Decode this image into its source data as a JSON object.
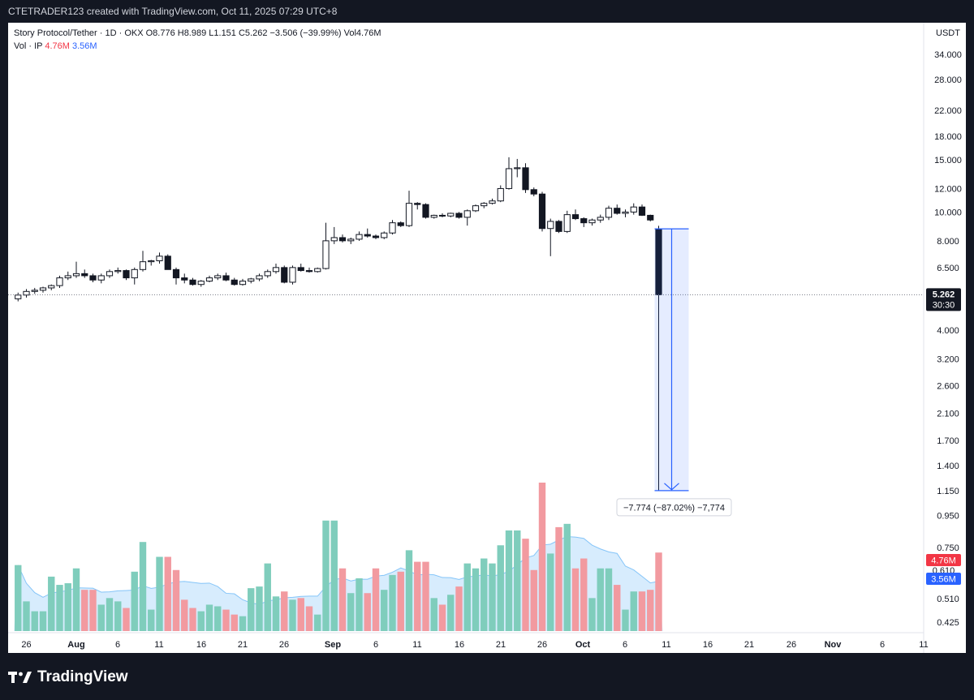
{
  "header": {
    "caption": "CTETRADER123 created with TradingView.com, Oct 11, 2025 07:29 UTC+8"
  },
  "legend": {
    "line1": "Story Protocol/Tether · 1D · OKX  O8.776  H8.989  L1.151  C5.262  −3.506 (−39.99%)  Vol4.76M",
    "vol_prefix": "Vol · IP",
    "vol_a": "4.76M",
    "vol_b": "3.56M"
  },
  "price_axis": {
    "currency": "USDT",
    "labels": [
      "34.000",
      "28.000",
      "22.000",
      "18.000",
      "15.000",
      "12.000",
      "10.000",
      "8.000",
      "6.500",
      "5.262",
      "4.000",
      "3.200",
      "2.600",
      "2.100",
      "1.700",
      "1.400",
      "1.150",
      "0.950",
      "0.750",
      "0.510",
      "0.425"
    ],
    "last_price_label": "5.262",
    "countdown": "30:30",
    "vol_label_a": "4.76M",
    "vol_label_b": "3.56M",
    "vol_hidden_label": "0.610"
  },
  "time_axis": {
    "labels": [
      "26",
      "Aug",
      "6",
      "11",
      "16",
      "21",
      "26",
      "Sep",
      "6",
      "11",
      "16",
      "21",
      "26",
      "Oct",
      "6",
      "11",
      "16",
      "21",
      "26",
      "Nov",
      "6",
      "11"
    ]
  },
  "measure": {
    "label": "−7.774 (−87.02%) −7,774"
  },
  "footer": {
    "brand": "TradingView"
  },
  "colors": {
    "up_volume": "#7fcdbc",
    "down_volume": "#f29aa0",
    "vol_ma": "#2196f3",
    "measure": "#2962ff",
    "last_price_tag": "#131722",
    "vol_tag_a": "#f23645",
    "vol_tag_b": "#2962ff"
  },
  "chart_data": {
    "type": "candlestick",
    "symbol": "Story Protocol/Tether",
    "interval": "1D",
    "exchange": "OKX",
    "y_scale": "log",
    "y_range": [
      0.39,
      44
    ],
    "dates": [
      "Jul 25",
      "Jul 26",
      "Jul 27",
      "Jul 28",
      "Jul 29",
      "Jul 30",
      "Jul 31",
      "Aug 1",
      "Aug 2",
      "Aug 3",
      "Aug 4",
      "Aug 5",
      "Aug 6",
      "Aug 7",
      "Aug 8",
      "Aug 9",
      "Aug 10",
      "Aug 11",
      "Aug 12",
      "Aug 13",
      "Aug 14",
      "Aug 15",
      "Aug 16",
      "Aug 17",
      "Aug 18",
      "Aug 19",
      "Aug 20",
      "Aug 21",
      "Aug 22",
      "Aug 23",
      "Aug 24",
      "Aug 25",
      "Aug 26",
      "Aug 27",
      "Aug 28",
      "Aug 29",
      "Aug 30",
      "Aug 31",
      "Sep 1",
      "Sep 2",
      "Sep 3",
      "Sep 4",
      "Sep 5",
      "Sep 6",
      "Sep 7",
      "Sep 8",
      "Sep 9",
      "Sep 10",
      "Sep 11",
      "Sep 12",
      "Sep 13",
      "Sep 14",
      "Sep 15",
      "Sep 16",
      "Sep 17",
      "Sep 18",
      "Sep 19",
      "Sep 20",
      "Sep 21",
      "Sep 22",
      "Sep 23",
      "Sep 24",
      "Sep 25",
      "Sep 26",
      "Sep 27",
      "Sep 28",
      "Sep 29",
      "Sep 30",
      "Oct 1",
      "Oct 2",
      "Oct 3",
      "Oct 4",
      "Oct 5",
      "Oct 6",
      "Oct 7",
      "Oct 8",
      "Oct 9",
      "Oct 10"
    ],
    "ohlc": [
      [
        5.1,
        5.35,
        5.0,
        5.25
      ],
      [
        5.25,
        5.5,
        5.15,
        5.4
      ],
      [
        5.4,
        5.55,
        5.3,
        5.45
      ],
      [
        5.45,
        5.6,
        5.35,
        5.55
      ],
      [
        5.55,
        5.7,
        5.45,
        5.65
      ],
      [
        5.65,
        6.1,
        5.55,
        6.0
      ],
      [
        6.0,
        6.3,
        5.9,
        6.1
      ],
      [
        6.1,
        6.8,
        6.0,
        6.2
      ],
      [
        6.2,
        6.4,
        6.0,
        6.1
      ],
      [
        6.1,
        6.2,
        5.8,
        5.9
      ],
      [
        5.9,
        6.2,
        5.75,
        6.1
      ],
      [
        6.1,
        6.4,
        6.0,
        6.3
      ],
      [
        6.3,
        6.5,
        6.2,
        6.35
      ],
      [
        6.35,
        6.4,
        5.9,
        6.0
      ],
      [
        6.0,
        6.5,
        5.7,
        6.4
      ],
      [
        6.4,
        7.4,
        6.3,
        6.8
      ],
      [
        6.8,
        6.9,
        6.6,
        6.85
      ],
      [
        6.85,
        7.3,
        6.7,
        7.1
      ],
      [
        7.1,
        7.2,
        6.4,
        6.4
      ],
      [
        6.4,
        6.5,
        5.7,
        6.0
      ],
      [
        6.0,
        6.2,
        5.75,
        5.9
      ],
      [
        5.9,
        6.0,
        5.65,
        5.7
      ],
      [
        5.7,
        5.9,
        5.6,
        5.85
      ],
      [
        5.85,
        6.1,
        5.8,
        6.0
      ],
      [
        6.0,
        6.2,
        5.9,
        6.1
      ],
      [
        6.1,
        6.25,
        5.85,
        5.9
      ],
      [
        5.9,
        6.0,
        5.65,
        5.7
      ],
      [
        5.7,
        5.95,
        5.65,
        5.85
      ],
      [
        5.85,
        6.0,
        5.75,
        5.95
      ],
      [
        5.95,
        6.2,
        5.85,
        6.1
      ],
      [
        6.1,
        6.4,
        6.0,
        6.3
      ],
      [
        6.3,
        6.7,
        6.2,
        6.5
      ],
      [
        6.5,
        6.6,
        5.75,
        5.8
      ],
      [
        5.8,
        6.6,
        5.7,
        6.5
      ],
      [
        6.5,
        6.7,
        6.3,
        6.35
      ],
      [
        6.35,
        6.5,
        6.25,
        6.3
      ],
      [
        6.3,
        6.5,
        6.25,
        6.45
      ],
      [
        6.45,
        9.2,
        6.4,
        8.0
      ],
      [
        8.0,
        8.9,
        7.8,
        8.2
      ],
      [
        8.2,
        8.4,
        7.9,
        8.0
      ],
      [
        8.0,
        8.2,
        7.8,
        8.1
      ],
      [
        8.1,
        8.6,
        8.0,
        8.4
      ],
      [
        8.4,
        8.8,
        8.2,
        8.3
      ],
      [
        8.3,
        8.4,
        8.1,
        8.2
      ],
      [
        8.2,
        8.6,
        8.1,
        8.5
      ],
      [
        8.5,
        9.4,
        8.4,
        9.2
      ],
      [
        9.2,
        9.3,
        8.9,
        9.0
      ],
      [
        9.0,
        11.8,
        8.9,
        10.7
      ],
      [
        10.7,
        10.8,
        10.2,
        10.6
      ],
      [
        10.6,
        10.7,
        9.5,
        9.6
      ],
      [
        9.6,
        9.8,
        9.5,
        9.75
      ],
      [
        9.75,
        9.9,
        9.6,
        9.7
      ],
      [
        9.7,
        9.95,
        9.6,
        9.9
      ],
      [
        9.9,
        10.0,
        9.5,
        9.6
      ],
      [
        9.6,
        10.2,
        9.0,
        10.1
      ],
      [
        10.1,
        10.6,
        10.0,
        10.5
      ],
      [
        10.5,
        10.8,
        10.3,
        10.7
      ],
      [
        10.7,
        11.1,
        10.6,
        10.9
      ],
      [
        10.9,
        12.3,
        10.8,
        12.0
      ],
      [
        12.0,
        15.3,
        11.9,
        14.0
      ],
      [
        14.0,
        15.1,
        13.1,
        14.1
      ],
      [
        14.1,
        14.6,
        11.6,
        11.9
      ],
      [
        11.9,
        12.1,
        11.3,
        11.5
      ],
      [
        11.5,
        11.7,
        8.6,
        8.8
      ],
      [
        8.8,
        9.5,
        7.1,
        9.3
      ],
      [
        9.3,
        9.4,
        8.5,
        8.6
      ],
      [
        8.6,
        10.1,
        8.5,
        9.8
      ],
      [
        9.8,
        10.2,
        9.4,
        9.5
      ],
      [
        9.5,
        9.6,
        8.9,
        9.2
      ],
      [
        9.2,
        9.5,
        9.0,
        9.4
      ],
      [
        9.4,
        9.8,
        9.2,
        9.6
      ],
      [
        9.6,
        10.5,
        9.4,
        10.3
      ],
      [
        10.3,
        10.6,
        9.8,
        9.9
      ],
      [
        9.9,
        10.2,
        9.6,
        10.0
      ],
      [
        10.0,
        10.7,
        9.8,
        10.4
      ],
      [
        10.4,
        10.6,
        9.7,
        9.75
      ],
      [
        9.75,
        9.8,
        9.3,
        9.4
      ],
      [
        8.776,
        8.989,
        1.151,
        5.262
      ]
    ],
    "volume_m": [
      4.0,
      1.8,
      1.2,
      1.2,
      3.3,
      2.8,
      2.9,
      3.8,
      2.5,
      2.5,
      1.6,
      2.0,
      1.8,
      1.4,
      3.6,
      5.4,
      1.3,
      4.5,
      4.5,
      3.7,
      1.9,
      1.4,
      1.2,
      1.6,
      1.5,
      1.3,
      1.0,
      0.9,
      2.6,
      2.7,
      4.1,
      2.1,
      2.4,
      1.9,
      2.0,
      1.5,
      1.0,
      6.7,
      6.7,
      3.8,
      2.3,
      3.2,
      2.3,
      3.8,
      2.5,
      3.4,
      3.6,
      4.9,
      4.2,
      4.2,
      2.0,
      1.6,
      2.2,
      2.7,
      4.1,
      3.8,
      4.4,
      4.1,
      5.2,
      6.1,
      6.1,
      5.6,
      3.7,
      9.0,
      4.7,
      6.3,
      6.5,
      3.8,
      4.4,
      2.0,
      3.8,
      3.8,
      2.8,
      1.3,
      2.4,
      2.4,
      2.5,
      4.76
    ],
    "volume_ma_m": 3.56,
    "last_close": 5.262,
    "measure_change": -7.774,
    "measure_change_pct": -87.02
  }
}
